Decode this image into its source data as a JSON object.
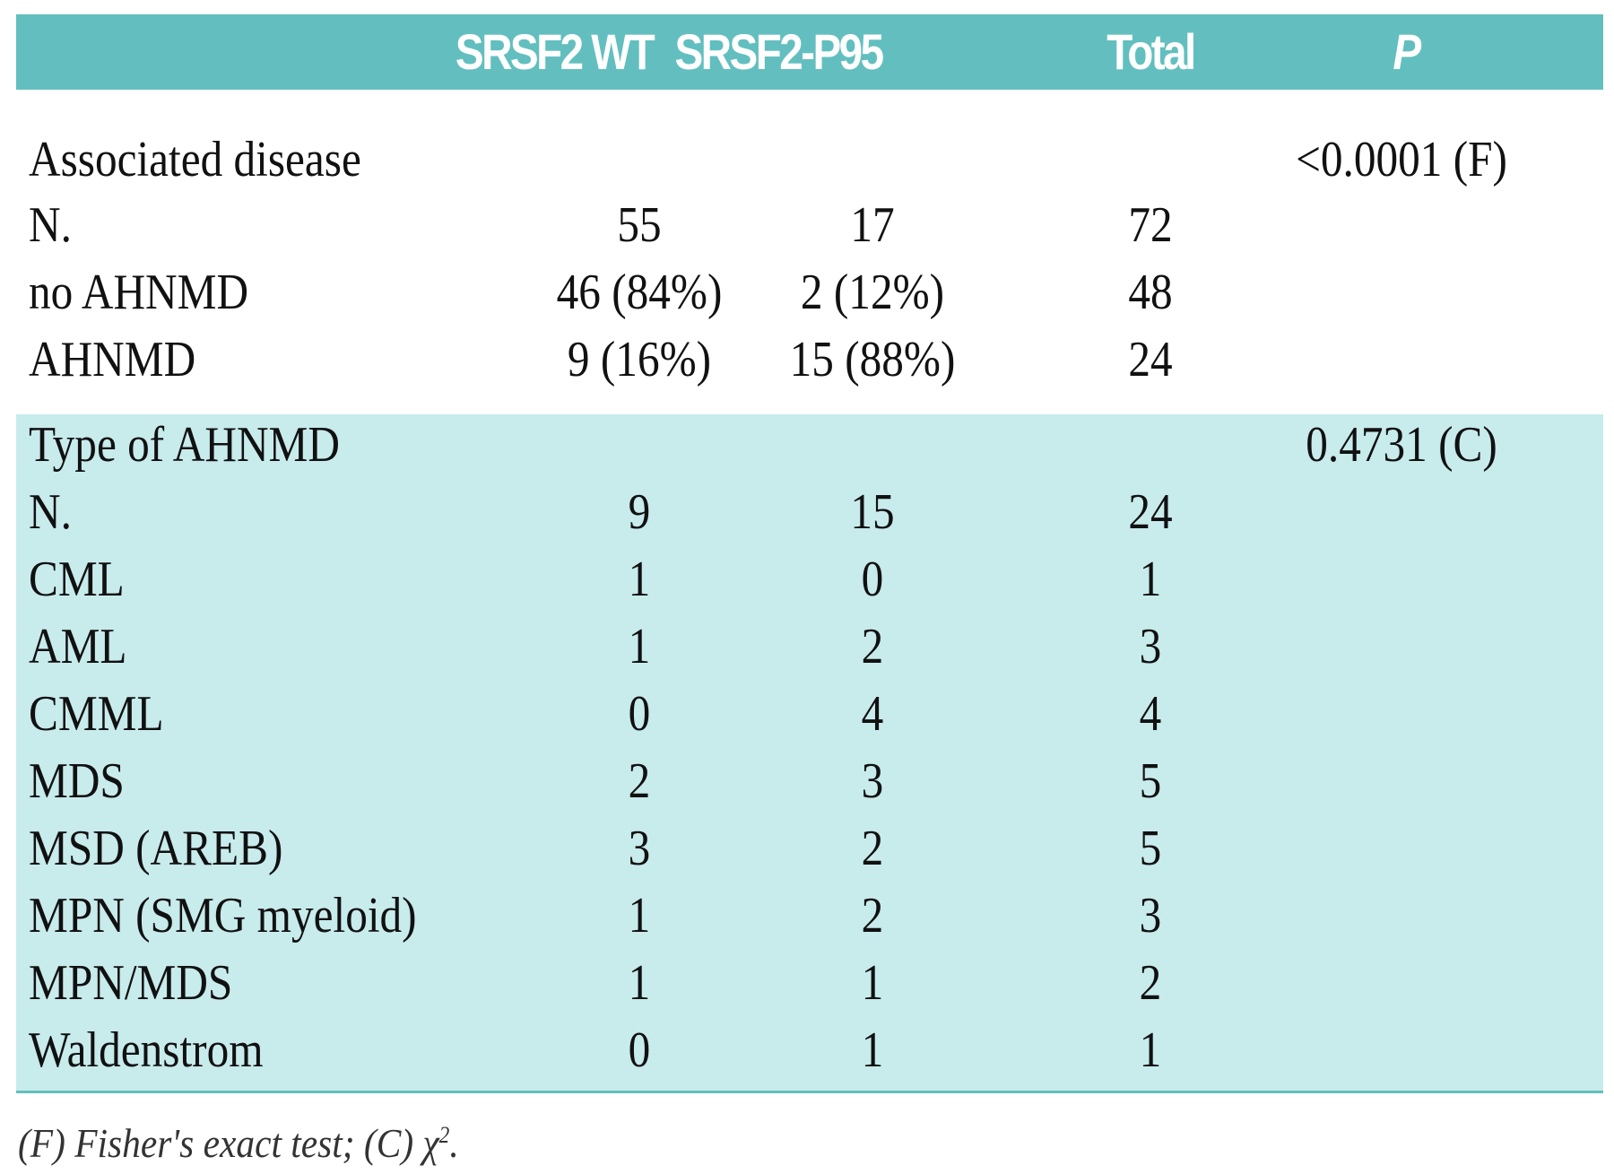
{
  "table": {
    "headers": {
      "label": "",
      "wt": "SRSF2 WT",
      "p95": "SRSF2-P95",
      "total": "Total",
      "p": "P"
    },
    "rows": [
      {
        "label": "Associated disease",
        "wt": "",
        "p95": "",
        "total": "",
        "p": "<0.0001 (F)"
      },
      {
        "label": "N.",
        "wt": "55",
        "p95": "17",
        "total": "72",
        "p": ""
      },
      {
        "label": "no AHNMD",
        "wt": "46 (84%)",
        "p95": "2 (12%)",
        "total": "48",
        "p": ""
      },
      {
        "label": "AHNMD",
        "wt": "9 (16%)",
        "p95": "15 (88%)",
        "total": "24",
        "p": ""
      },
      {
        "label": "Type of AHNMD",
        "wt": "",
        "p95": "",
        "total": "",
        "p": "0.4731 (C)"
      },
      {
        "label": "N.",
        "wt": "9",
        "p95": "15",
        "total": "24",
        "p": ""
      },
      {
        "label": "CML",
        "wt": "1",
        "p95": "0",
        "total": "1",
        "p": ""
      },
      {
        "label": "AML",
        "wt": "1",
        "p95": "2",
        "total": "3",
        "p": ""
      },
      {
        "label": "CMML",
        "wt": "0",
        "p95": "4",
        "total": "4",
        "p": ""
      },
      {
        "label": "MDS",
        "wt": "2",
        "p95": "3",
        "total": "5",
        "p": ""
      },
      {
        "label": "MSD (AREB)",
        "wt": "3",
        "p95": "2",
        "total": "5",
        "p": ""
      },
      {
        "label": "MPN (SMG myeloid)",
        "wt": "1",
        "p95": "2",
        "total": "3",
        "p": ""
      },
      {
        "label": "MPN/MDS",
        "wt": "1",
        "p95": "1",
        "total": "2",
        "p": ""
      },
      {
        "label": "Waldenstrom",
        "wt": "0",
        "p95": "1",
        "total": "1",
        "p": ""
      }
    ]
  },
  "footnote": {
    "text": "(F) Fisher's exact test; (C) χ",
    "superscript": "2",
    "end": "."
  },
  "colors": {
    "header_bg": "#63bfbf",
    "band_bg": "#c8ebec",
    "header_text": "#ffffff"
  }
}
